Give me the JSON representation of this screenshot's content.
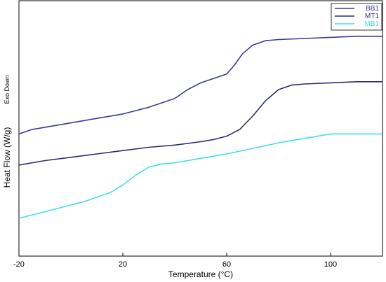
{
  "chart_data": {
    "type": "line",
    "title": "",
    "xlabel": "Temperature (°C)",
    "ylabel": "Heat Flow (W/g)",
    "y_annotation": "Exo Down",
    "xlim": [
      -20,
      120
    ],
    "x_ticks": [
      {
        "value": -20,
        "label": "-20"
      },
      {
        "value": 20,
        "label": "20"
      },
      {
        "value": 60,
        "label": "60"
      },
      {
        "value": 100,
        "label": "100"
      }
    ],
    "grid": false,
    "legend_position": "top-right",
    "series": [
      {
        "name": "BB1",
        "color": "#3a3a9a",
        "x": [
          -20,
          -15,
          -10,
          0,
          10,
          20,
          30,
          40,
          45,
          50,
          55,
          60,
          63,
          66,
          70,
          75,
          80,
          90,
          100,
          110,
          120
        ],
        "y": [
          0.83,
          0.85,
          0.86,
          0.88,
          0.9,
          0.92,
          0.95,
          0.99,
          1.03,
          1.06,
          1.08,
          1.1,
          1.14,
          1.19,
          1.23,
          1.25,
          1.255,
          1.26,
          1.265,
          1.27,
          1.27
        ]
      },
      {
        "name": "MT1",
        "color": "#2c2c72",
        "x": [
          -20,
          -10,
          0,
          10,
          20,
          30,
          40,
          50,
          55,
          60,
          65,
          70,
          75,
          80,
          85,
          90,
          100,
          110,
          120
        ],
        "y": [
          0.69,
          0.71,
          0.725,
          0.74,
          0.755,
          0.77,
          0.78,
          0.795,
          0.805,
          0.82,
          0.85,
          0.91,
          0.98,
          1.03,
          1.05,
          1.055,
          1.06,
          1.065,
          1.065
        ]
      },
      {
        "name": "MB1",
        "color": "#40e0e0",
        "x": [
          -20,
          -10,
          0,
          5,
          10,
          15,
          20,
          25,
          30,
          35,
          40,
          50,
          60,
          70,
          80,
          90,
          100,
          110,
          120
        ],
        "y": [
          0.45,
          0.48,
          0.51,
          0.525,
          0.545,
          0.565,
          0.6,
          0.645,
          0.68,
          0.695,
          0.7,
          0.72,
          0.74,
          0.765,
          0.79,
          0.81,
          0.83,
          0.83,
          0.83
        ]
      }
    ],
    "ylim": [
      0.28,
      1.43
    ]
  }
}
